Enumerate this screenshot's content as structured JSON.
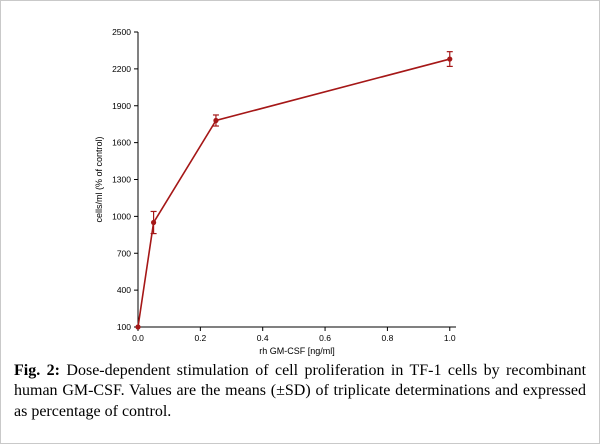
{
  "figure": {
    "caption": {
      "label": "Fig. 2:",
      "text": "Dose-dependent stimulation of cell proliferation in TF-1 cells by recombinant human GM-CSF. Values are the means (±SD) of triplicate determinations and expressed as percentage of control."
    }
  },
  "chart_data": {
    "type": "line",
    "title": "",
    "xlabel": "rh GM-CSF [ng/ml]",
    "ylabel": "cells/ml (% of control)",
    "x": [
      0.0,
      0.05,
      0.25,
      1.0
    ],
    "y": [
      100,
      950,
      1780,
      2280
    ],
    "y_err": [
      0,
      90,
      45,
      60
    ],
    "x_ticks": [
      0.0,
      0.2,
      0.4,
      0.6,
      0.8,
      1.0
    ],
    "y_ticks": [
      100,
      400,
      700,
      1000,
      1300,
      1600,
      1900,
      2200,
      2500
    ],
    "xlim": [
      0,
      1.02
    ],
    "ylim": [
      100,
      2500
    ],
    "grid": false,
    "legend": null,
    "line_color": "#a51717",
    "marker": "circle"
  }
}
